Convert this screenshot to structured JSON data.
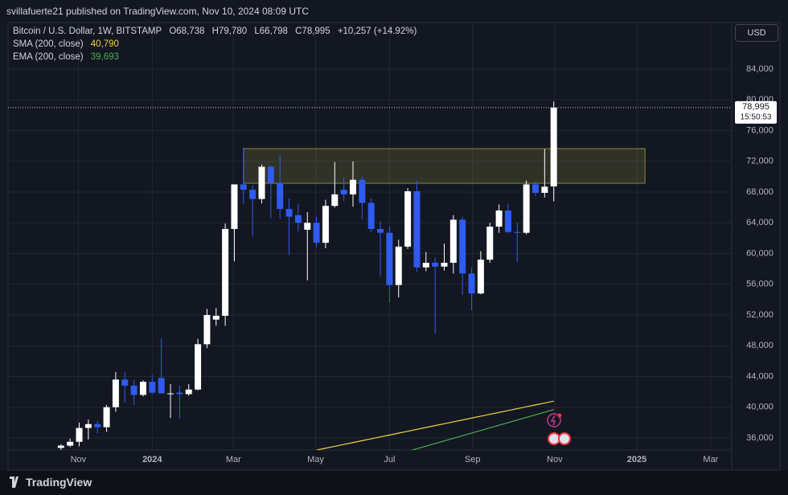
{
  "header": {
    "published": "svillafuerte21 published on TradingView.com, Nov 10, 2024 08:09 UTC"
  },
  "legend": {
    "symbol": "Bitcoin / U.S. Dollar, 1W, BITSTAMP",
    "ohlc": [
      "O68,738",
      "H79,780",
      "L66,798",
      "C78,995",
      "+10,257 (+14.92%)"
    ]
  },
  "footer": {
    "brand": "TradingView"
  },
  "chart_data": {
    "type": "candlestick",
    "currency": "USD",
    "up_color": "#ffffff",
    "down_color": "#2f5bf0",
    "open": [
      34700,
      35000,
      35500,
      37300,
      37800,
      37400,
      40000,
      43600,
      42800,
      41600,
      43300,
      43800,
      41800,
      41900,
      41700,
      42300,
      48200,
      51400,
      51900,
      63200,
      69000,
      68300,
      67100,
      71300,
      69200,
      65800,
      65000,
      63100,
      64000,
      61400,
      66200,
      68300,
      67700,
      69600,
      66600,
      63200,
      62700,
      55900,
      60900,
      68100,
      58200,
      58800,
      58300,
      58800,
      64400,
      57400,
      54800,
      59200,
      63500,
      65600,
      62800,
      62700,
      69000,
      67900,
      68738
    ],
    "high": [
      35200,
      35900,
      38000,
      38400,
      38200,
      40300,
      44600,
      44600,
      43500,
      43500,
      44200,
      49000,
      43000,
      42800,
      43000,
      48900,
      52800,
      52900,
      63900,
      69000,
      73800,
      68900,
      71600,
      71400,
      72800,
      67200,
      66500,
      65400,
      64800,
      67000,
      71900,
      69900,
      72000,
      70000,
      67200,
      64200,
      63500,
      61800,
      68500,
      69500,
      60200,
      59500,
      61300,
      65000,
      64800,
      58200,
      60300,
      64000,
      66400,
      66500,
      64000,
      69500,
      69400,
      73600,
      79780
    ],
    "low": [
      34100,
      34800,
      34900,
      35800,
      36600,
      36800,
      39400,
      40600,
      40300,
      41400,
      41700,
      41800,
      38600,
      38500,
      41500,
      42200,
      47700,
      50600,
      50600,
      59000,
      66500,
      62200,
      66500,
      64600,
      64500,
      59800,
      62900,
      56500,
      60800,
      60700,
      66000,
      66800,
      66100,
      64500,
      62800,
      57000,
      53600,
      54300,
      60600,
      57600,
      57700,
      49600,
      57800,
      57400,
      54600,
      52600,
      54700,
      58800,
      62700,
      62700,
      58900,
      62500,
      67500,
      67300,
      66798
    ],
    "close": [
      35000,
      35500,
      37300,
      37800,
      37400,
      40000,
      43600,
      42800,
      41600,
      43300,
      41900,
      41800,
      41800,
      41700,
      42300,
      48200,
      52000,
      51900,
      63200,
      69000,
      68300,
      67100,
      71300,
      69200,
      65800,
      64800,
      64000,
      64000,
      61400,
      66200,
      67700,
      67700,
      69600,
      66600,
      63200,
      62700,
      55900,
      60900,
      68100,
      58200,
      58800,
      58300,
      58800,
      64400,
      57400,
      54800,
      59200,
      63500,
      65600,
      62800,
      62700,
      69000,
      67900,
      68700,
      78995
    ],
    "last_price_label": "78,995",
    "countdown": "15:50:53",
    "series": [
      {
        "name": "SMA (200, close)",
        "color": "#f0d04a",
        "last_value_label": "40,790",
        "values": [
          null,
          null,
          null,
          null,
          null,
          null,
          null,
          null,
          null,
          null,
          null,
          null,
          null,
          null,
          null,
          null,
          null,
          null,
          null,
          null,
          null,
          null,
          null,
          null,
          null,
          null,
          null,
          null,
          34420,
          34665,
          34910,
          35155,
          35400,
          35645,
          35890,
          36135,
          36380,
          36625,
          36870,
          37115,
          37360,
          37605,
          37850,
          38095,
          38340,
          38585,
          38830,
          39075,
          39320,
          39565,
          39810,
          40055,
          40300,
          40545,
          40790
        ]
      },
      {
        "name": "EMA (200, close)",
        "color": "#4caf50",
        "last_value_label": "39,693",
        "values": [
          null,
          null,
          null,
          null,
          null,
          null,
          null,
          null,
          null,
          null,
          null,
          null,
          null,
          null,
          null,
          null,
          null,
          null,
          null,
          null,
          null,
          null,
          null,
          null,
          null,
          null,
          null,
          null,
          null,
          null,
          null,
          null,
          null,
          null,
          null,
          null,
          null,
          null,
          34253,
          34593,
          34933,
          35273,
          35613,
          35953,
          36293,
          36633,
          36973,
          37313,
          37653,
          37993,
          38333,
          38673,
          39013,
          39353,
          39693
        ]
      }
    ],
    "zone": {
      "x": [
        20,
        64
      ],
      "y": [
        69150,
        73650
      ]
    },
    "xlim": [
      -5.8,
      73.5
    ],
    "xticks": [
      {
        "value": 1.9,
        "label": "Nov"
      },
      {
        "value": 10,
        "label": "2024"
      },
      {
        "value": 18.9,
        "label": "Mar"
      },
      {
        "value": 27.9,
        "label": "May"
      },
      {
        "value": 36,
        "label": "Jul"
      },
      {
        "value": 45.1,
        "label": "Sep"
      },
      {
        "value": 54.1,
        "label": "Nov"
      },
      {
        "value": 63.1,
        "label": "2025"
      },
      {
        "value": 71.2,
        "label": "Mar"
      }
    ],
    "ylim": [
      34430,
      90070
    ],
    "yticks": [
      {
        "value": 36000,
        "label": "36,000"
      },
      {
        "value": 40000,
        "label": "40,000"
      },
      {
        "value": 44000,
        "label": "44,000"
      },
      {
        "value": 48000,
        "label": "48,000"
      },
      {
        "value": 52000,
        "label": "52,000"
      },
      {
        "value": 56000,
        "label": "56,000"
      },
      {
        "value": 60000,
        "label": "60,000"
      },
      {
        "value": 64000,
        "label": "64,000"
      },
      {
        "value": 68000,
        "label": "68,000"
      },
      {
        "value": 72000,
        "label": "72,000"
      },
      {
        "value": 76000,
        "label": "76,000"
      },
      {
        "value": 80000,
        "label": "80,000"
      },
      {
        "value": 84000,
        "label": "84,000"
      }
    ],
    "grid": true
  }
}
